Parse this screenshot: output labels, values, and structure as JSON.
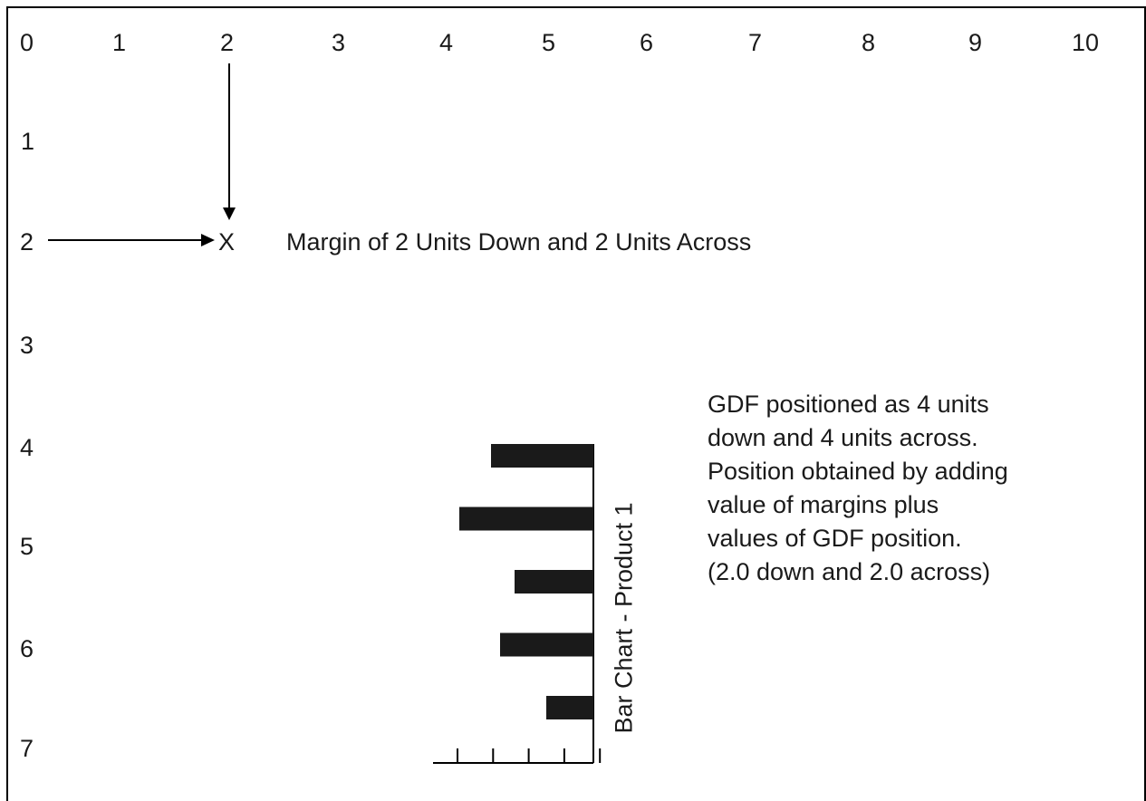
{
  "top_ruler": [
    "0",
    "1",
    "2",
    "3",
    "4",
    "5",
    "6",
    "7",
    "8",
    "9",
    "10"
  ],
  "left_ruler": [
    "1",
    "2",
    "3",
    "4",
    "5",
    "6",
    "7"
  ],
  "marker": "X",
  "margin_caption": "Margin of 2 Units Down and 2 Units Across",
  "note_lines": [
    "GDF positioned as 4 units",
    "down and 4 units across.",
    "Position obtained by adding",
    "value of margins plus",
    "values of GDF position.",
    "(2.0 down and 2.0 across)"
  ],
  "chart_label": "Bar Chart - Product 1",
  "chart_data": {
    "type": "bar",
    "orientation": "horizontal",
    "values": [
      113,
      148,
      87,
      103,
      52
    ],
    "axis_ticks": 5,
    "bar_color": "#1a1a1a"
  }
}
